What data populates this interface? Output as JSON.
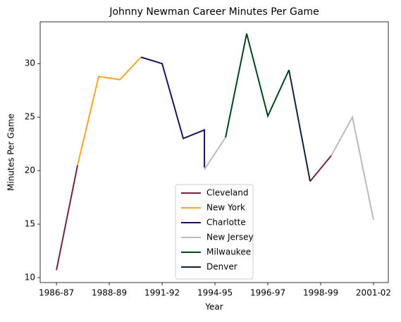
{
  "chart_data": {
    "type": "line",
    "title": "Johnny Newman Career Minutes Per Game",
    "xlabel": "Year",
    "ylabel": "Minutes Per Game",
    "series": [
      {
        "name": "Cleveland",
        "color": "#6f263d",
        "x": [
          0,
          1,
          null,
          12,
          13
        ],
        "values": [
          10.7,
          20.5,
          null,
          19.0,
          21.4
        ]
      },
      {
        "name": "New York",
        "color": "#f5a623",
        "x": [
          1,
          2,
          3,
          4
        ],
        "values": [
          20.5,
          28.8,
          28.5,
          30.6
        ]
      },
      {
        "name": "Charlotte",
        "color": "#1d1160",
        "x": [
          4,
          5,
          6,
          7,
          7
        ],
        "values": [
          30.6,
          30.0,
          23.0,
          23.8,
          20.3
        ]
      },
      {
        "name": "New Jersey",
        "color": "#bbbbbb",
        "x": [
          7,
          8,
          null,
          13,
          14,
          15
        ],
        "values": [
          20.1,
          23.1,
          null,
          21.4,
          25.0,
          15.4
        ]
      },
      {
        "name": "Milwaukee",
        "color": "#00471b",
        "x": [
          8,
          9,
          10,
          11
        ],
        "values": [
          23.1,
          32.8,
          25.1,
          29.4
        ]
      },
      {
        "name": "Denver",
        "color": "#0e2240",
        "x": [
          11,
          12
        ],
        "values": [
          29.4,
          19.0
        ]
      }
    ],
    "xlim": [
      -0.77,
      15.7
    ],
    "xticks": [
      {
        "value": 0,
        "label": "1986-87"
      },
      {
        "value": 2.5,
        "label": "1988-89"
      },
      {
        "value": 5,
        "label": "1991-92"
      },
      {
        "value": 7.5,
        "label": "1994-95"
      },
      {
        "value": 10,
        "label": "1996-97"
      },
      {
        "value": 12.5,
        "label": "1998-99"
      },
      {
        "value": 15,
        "label": "2001-02"
      }
    ],
    "ylim": [
      9.54,
      33.9
    ],
    "yticks": [
      10,
      15,
      20,
      25,
      30
    ],
    "legend": "lower center"
  }
}
